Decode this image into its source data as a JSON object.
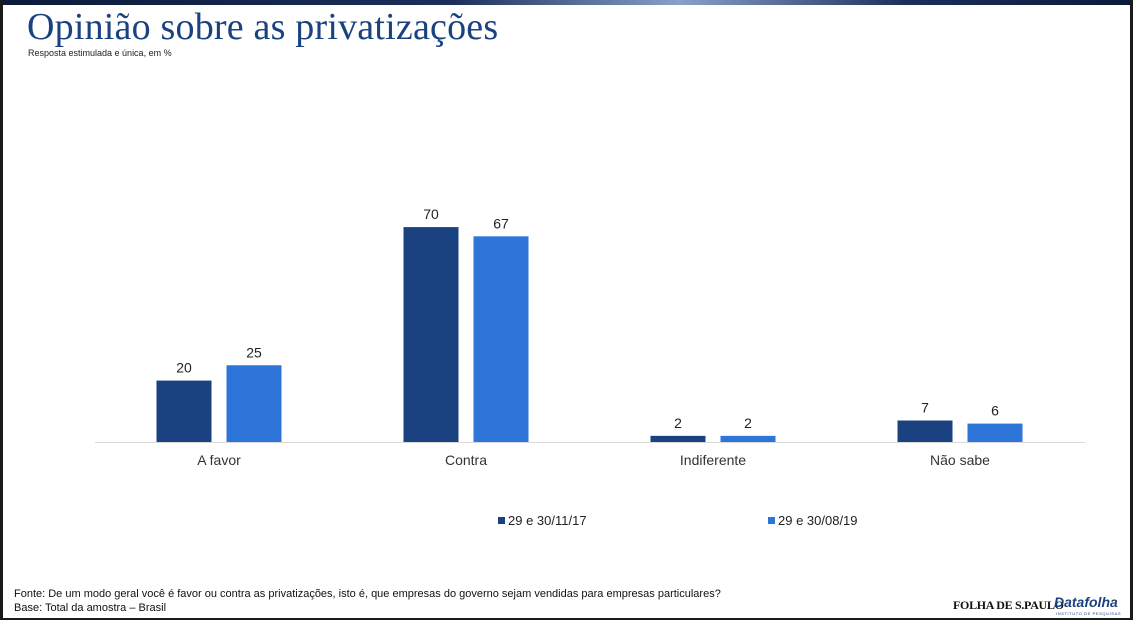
{
  "title": "Opinião sobre as privatizações",
  "subtitle": "Resposta estimulada e única, em %",
  "footer": {
    "source": "Fonte: De um modo geral você é favor ou contra as privatizações, isto é, que empresas do governo sejam vendidas para empresas particulares?",
    "base": "Base: Total da amostra – Brasil"
  },
  "logos": {
    "folha": "FOLHA DE S.PAULO",
    "datafolha": "Datafolha",
    "datafolha_sub": "INSTITUTO DE PESQUISAS"
  },
  "colors": {
    "title": "#1b4280",
    "series1": "#1b4280",
    "series2": "#2e75d9"
  },
  "chart_data": {
    "type": "bar",
    "title": "Opinião sobre as privatizações",
    "subtitle": "Resposta estimulada e única, em %",
    "categories": [
      "A favor",
      "Contra",
      "Indiferente",
      "Não sabe"
    ],
    "series": [
      {
        "name": "29 e 30/11/17",
        "values": [
          20,
          70,
          2,
          7
        ],
        "color": "#1b4280"
      },
      {
        "name": "29 e 30/08/19",
        "values": [
          25,
          67,
          2,
          6
        ],
        "color": "#2e75d9"
      }
    ],
    "ylim": [
      0,
      100
    ],
    "grid": false,
    "legend": "bottom",
    "data_labels": true
  }
}
